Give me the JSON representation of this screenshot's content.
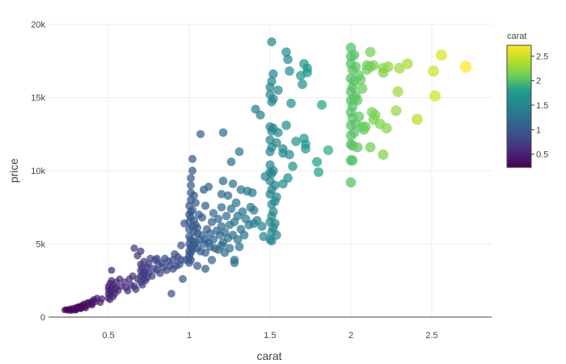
{
  "chart_data": {
    "type": "scatter",
    "title": "",
    "xlabel": "carat",
    "ylabel": "price",
    "xlim": [
      0.13,
      2.87
    ],
    "ylim": [
      0,
      20000
    ],
    "x_ticks": [
      0.5,
      1,
      1.5,
      2,
      2.5
    ],
    "x_tick_labels": [
      "0.5",
      "1",
      "1.5",
      "2",
      "2.5"
    ],
    "y_ticks": [
      0,
      5000,
      10000,
      15000,
      20000
    ],
    "y_tick_labels": [
      "0",
      "5k",
      "10k",
      "15k",
      "20k"
    ],
    "grid": true,
    "colorscale": "viridis",
    "color_variable": "carat",
    "colorbar": {
      "title": "carat",
      "range": [
        0.23,
        2.72
      ],
      "ticks": [
        0.5,
        1,
        1.5,
        2,
        2.5
      ],
      "tick_labels": [
        "0.5",
        "1",
        "1.5",
        "2",
        "2.5"
      ],
      "placement": "right"
    },
    "marker_size_by": "carat",
    "points": [
      [
        0.23,
        480
      ],
      [
        0.24,
        520
      ],
      [
        0.25,
        450
      ],
      [
        0.26,
        560
      ],
      [
        0.27,
        500
      ],
      [
        0.28,
        610
      ],
      [
        0.29,
        470
      ],
      [
        0.3,
        650
      ],
      [
        0.3,
        520
      ],
      [
        0.31,
        700
      ],
      [
        0.31,
        580
      ],
      [
        0.32,
        720
      ],
      [
        0.32,
        640
      ],
      [
        0.33,
        760
      ],
      [
        0.33,
        600
      ],
      [
        0.34,
        820
      ],
      [
        0.35,
        700
      ],
      [
        0.35,
        900
      ],
      [
        0.36,
        760
      ],
      [
        0.37,
        980
      ],
      [
        0.38,
        850
      ],
      [
        0.38,
        1000
      ],
      [
        0.39,
        900
      ],
      [
        0.4,
        1100
      ],
      [
        0.4,
        950
      ],
      [
        0.41,
        1200
      ],
      [
        0.42,
        1050
      ],
      [
        0.43,
        1300
      ],
      [
        0.45,
        1000
      ],
      [
        0.46,
        1250
      ],
      [
        0.3,
        480
      ],
      [
        0.33,
        560
      ],
      [
        0.36,
        620
      ],
      [
        0.4,
        820
      ],
      [
        0.27,
        440
      ],
      [
        0.5,
        1300
      ],
      [
        0.5,
        1600
      ],
      [
        0.5,
        1900
      ],
      [
        0.5,
        2100
      ],
      [
        0.51,
        1500
      ],
      [
        0.51,
        1800
      ],
      [
        0.51,
        2300
      ],
      [
        0.51,
        1200
      ],
      [
        0.52,
        2000
      ],
      [
        0.52,
        1700
      ],
      [
        0.52,
        2500
      ],
      [
        0.53,
        1400
      ],
      [
        0.53,
        2200
      ],
      [
        0.54,
        1900
      ],
      [
        0.54,
        1600
      ],
      [
        0.55,
        2400
      ],
      [
        0.55,
        2000
      ],
      [
        0.56,
        1800
      ],
      [
        0.57,
        2600
      ],
      [
        0.58,
        2100
      ],
      [
        0.6,
        2400
      ],
      [
        0.61,
        2000
      ],
      [
        0.62,
        1800
      ],
      [
        0.63,
        2600
      ],
      [
        0.64,
        2200
      ],
      [
        0.65,
        2800
      ],
      [
        0.66,
        2100
      ],
      [
        0.67,
        1900
      ],
      [
        0.68,
        2600
      ],
      [
        0.52,
        3200
      ],
      [
        0.7,
        2400
      ],
      [
        0.7,
        2800
      ],
      [
        0.7,
        3200
      ],
      [
        0.7,
        3600
      ],
      [
        0.71,
        2200
      ],
      [
        0.71,
        3000
      ],
      [
        0.71,
        3400
      ],
      [
        0.72,
        2600
      ],
      [
        0.72,
        3800
      ],
      [
        0.72,
        2900
      ],
      [
        0.73,
        3100
      ],
      [
        0.73,
        2500
      ],
      [
        0.74,
        3400
      ],
      [
        0.74,
        2700
      ],
      [
        0.75,
        3000
      ],
      [
        0.75,
        3600
      ],
      [
        0.76,
        4000
      ],
      [
        0.77,
        2800
      ],
      [
        0.78,
        3300
      ],
      [
        0.79,
        3900
      ],
      [
        0.8,
        3200
      ],
      [
        0.8,
        4000
      ],
      [
        0.81,
        3600
      ],
      [
        0.82,
        3000
      ],
      [
        0.83,
        3700
      ],
      [
        0.84,
        3400
      ],
      [
        0.85,
        4000
      ],
      [
        0.86,
        3200
      ],
      [
        0.87,
        3800
      ],
      [
        0.88,
        3500
      ],
      [
        0.66,
        4700
      ],
      [
        0.7,
        4500
      ],
      [
        0.68,
        4200
      ],
      [
        0.9,
        3300
      ],
      [
        0.9,
        3900
      ],
      [
        0.91,
        4300
      ],
      [
        0.92,
        3500
      ],
      [
        0.93,
        4100
      ],
      [
        0.94,
        3600
      ],
      [
        0.95,
        3900
      ],
      [
        0.96,
        2600
      ],
      [
        0.98,
        3900
      ],
      [
        0.89,
        1600
      ],
      [
        1.0,
        4000
      ],
      [
        1.0,
        4500
      ],
      [
        1.0,
        5000
      ],
      [
        1.0,
        5500
      ],
      [
        1.0,
        6000
      ],
      [
        1.0,
        6500
      ],
      [
        1.0,
        7000
      ],
      [
        1.0,
        7600
      ],
      [
        1.0,
        4200
      ],
      [
        1.0,
        3700
      ],
      [
        1.01,
        4800
      ],
      [
        1.01,
        5300
      ],
      [
        1.01,
        6800
      ],
      [
        1.01,
        7200
      ],
      [
        1.01,
        8000
      ],
      [
        1.01,
        8500
      ],
      [
        1.01,
        9000
      ],
      [
        1.01,
        9500
      ],
      [
        1.01,
        4400
      ],
      [
        1.01,
        3900
      ],
      [
        1.02,
        5200
      ],
      [
        1.02,
        6200
      ],
      [
        1.02,
        7300
      ],
      [
        1.02,
        10000
      ],
      [
        1.02,
        10800
      ],
      [
        1.02,
        4600
      ],
      [
        1.03,
        5800
      ],
      [
        1.03,
        6600
      ],
      [
        1.03,
        8300
      ],
      [
        1.03,
        4900
      ],
      [
        1.04,
        5100
      ],
      [
        1.04,
        6300
      ],
      [
        1.04,
        7800
      ],
      [
        1.05,
        4700
      ],
      [
        1.05,
        5700
      ],
      [
        1.05,
        6100
      ],
      [
        1.06,
        5300
      ],
      [
        1.06,
        7000
      ],
      [
        1.07,
        12500
      ],
      [
        1.07,
        4500
      ],
      [
        1.08,
        5600
      ],
      [
        1.08,
        6800
      ],
      [
        1.09,
        5000
      ],
      [
        1.09,
        8700
      ],
      [
        1.1,
        5300
      ],
      [
        1.1,
        7600
      ],
      [
        1.1,
        4400
      ],
      [
        1.11,
        6000
      ],
      [
        1.12,
        5100
      ],
      [
        1.12,
        8900
      ],
      [
        1.13,
        5700
      ],
      [
        1.13,
        4800
      ],
      [
        1.14,
        6500
      ],
      [
        1.15,
        5300
      ],
      [
        1.15,
        7100
      ],
      [
        1.16,
        4700
      ],
      [
        1.17,
        5900
      ],
      [
        1.18,
        6700
      ],
      [
        1.18,
        4600
      ],
      [
        1.19,
        5600
      ],
      [
        1.2,
        4900
      ],
      [
        1.2,
        6200
      ],
      [
        1.2,
        7500
      ],
      [
        1.2,
        8400
      ],
      [
        1.21,
        5100
      ],
      [
        1.21,
        9300
      ],
      [
        1.21,
        12600
      ],
      [
        1.22,
        5800
      ],
      [
        1.22,
        4400
      ],
      [
        1.23,
        6900
      ],
      [
        1.24,
        5400
      ],
      [
        1.24,
        8300
      ],
      [
        1.25,
        6300
      ],
      [
        1.25,
        4700
      ],
      [
        1.26,
        7400
      ],
      [
        1.26,
        10600
      ],
      [
        1.27,
        5600
      ],
      [
        1.27,
        9100
      ],
      [
        1.28,
        6500
      ],
      [
        1.28,
        3700
      ],
      [
        1.29,
        7800
      ],
      [
        1.3,
        5300
      ],
      [
        1.3,
        6900
      ],
      [
        1.31,
        11300
      ],
      [
        1.31,
        4800
      ],
      [
        1.32,
        6000
      ],
      [
        1.32,
        8700
      ],
      [
        1.33,
        7200
      ],
      [
        1.34,
        5600
      ],
      [
        1.35,
        6700
      ],
      [
        1.36,
        8600
      ],
      [
        1.37,
        6300
      ],
      [
        1.38,
        7500
      ],
      [
        1.39,
        8500
      ],
      [
        1.4,
        6400
      ],
      [
        1.4,
        7300
      ],
      [
        1.41,
        14200
      ],
      [
        1.42,
        6600
      ],
      [
        1.44,
        13800
      ],
      [
        1.45,
        6200
      ],
      [
        1.46,
        5500
      ],
      [
        1.47,
        9600
      ],
      [
        0.97,
        6400
      ],
      [
        0.95,
        4900
      ],
      [
        1.05,
        3500
      ],
      [
        1.1,
        3300
      ],
      [
        1.14,
        3900
      ],
      [
        1.28,
        3900
      ],
      [
        1.5,
        5300
      ],
      [
        1.5,
        6500
      ],
      [
        1.5,
        8400
      ],
      [
        1.5,
        9300
      ],
      [
        1.5,
        10400
      ],
      [
        1.5,
        11300
      ],
      [
        1.5,
        12100
      ],
      [
        1.5,
        13000
      ],
      [
        1.5,
        15200
      ],
      [
        1.5,
        15700
      ],
      [
        1.51,
        5800
      ],
      [
        1.51,
        6900
      ],
      [
        1.51,
        7700
      ],
      [
        1.51,
        8700
      ],
      [
        1.51,
        9800
      ],
      [
        1.51,
        11600
      ],
      [
        1.51,
        12700
      ],
      [
        1.51,
        14700
      ],
      [
        1.51,
        16100
      ],
      [
        1.51,
        18800
      ],
      [
        1.52,
        6100
      ],
      [
        1.52,
        7200
      ],
      [
        1.52,
        10000
      ],
      [
        1.52,
        12900
      ],
      [
        1.52,
        16600
      ],
      [
        1.53,
        6400
      ],
      [
        1.53,
        7900
      ],
      [
        1.53,
        9000
      ],
      [
        1.54,
        5600
      ],
      [
        1.54,
        8200
      ],
      [
        1.54,
        11900
      ],
      [
        1.55,
        12600
      ],
      [
        1.55,
        15500
      ],
      [
        1.58,
        9100
      ],
      [
        1.58,
        11200
      ],
      [
        1.58,
        11500
      ],
      [
        1.6,
        13100
      ],
      [
        1.6,
        18100
      ],
      [
        1.61,
        17600
      ],
      [
        1.61,
        9500
      ],
      [
        1.62,
        11100
      ],
      [
        1.62,
        16800
      ],
      [
        1.63,
        14600
      ],
      [
        1.64,
        10300
      ],
      [
        1.66,
        12000
      ],
      [
        1.69,
        16500
      ],
      [
        1.7,
        15900
      ],
      [
        1.71,
        17300
      ],
      [
        1.71,
        12200
      ],
      [
        1.72,
        11800
      ],
      [
        1.72,
        11500
      ],
      [
        1.73,
        16700
      ],
      [
        1.73,
        17000
      ],
      [
        1.79,
        10600
      ],
      [
        1.8,
        9900
      ],
      [
        1.82,
        14500
      ],
      [
        1.86,
        11400
      ],
      [
        1.5,
        9900
      ],
      [
        1.51,
        5200
      ],
      [
        1.52,
        14900
      ],
      [
        2.0,
        9200
      ],
      [
        2.0,
        10700
      ],
      [
        2.0,
        11800
      ],
      [
        2.0,
        12400
      ],
      [
        2.0,
        13100
      ],
      [
        2.0,
        14000
      ],
      [
        2.0,
        14800
      ],
      [
        2.0,
        15400
      ],
      [
        2.0,
        16300
      ],
      [
        2.0,
        17300
      ],
      [
        2.0,
        17800
      ],
      [
        2.0,
        18400
      ],
      [
        2.01,
        10700
      ],
      [
        2.01,
        11700
      ],
      [
        2.01,
        13600
      ],
      [
        2.01,
        14400
      ],
      [
        2.01,
        15700
      ],
      [
        2.01,
        16900
      ],
      [
        2.02,
        12600
      ],
      [
        2.02,
        14900
      ],
      [
        2.02,
        16100
      ],
      [
        2.02,
        17900
      ],
      [
        2.03,
        13200
      ],
      [
        2.03,
        15100
      ],
      [
        2.03,
        17100
      ],
      [
        2.04,
        11600
      ],
      [
        2.04,
        14800
      ],
      [
        2.05,
        13700
      ],
      [
        2.05,
        16500
      ],
      [
        2.06,
        16200
      ],
      [
        2.07,
        13000
      ],
      [
        2.07,
        15600
      ],
      [
        2.08,
        12800
      ],
      [
        2.09,
        13000
      ],
      [
        2.1,
        16900
      ],
      [
        2.1,
        17200
      ],
      [
        2.12,
        11600
      ],
      [
        2.12,
        18100
      ],
      [
        2.12,
        17100
      ],
      [
        2.13,
        14000
      ],
      [
        2.14,
        13500
      ],
      [
        2.14,
        17200
      ],
      [
        2.15,
        13800
      ],
      [
        2.18,
        13200
      ],
      [
        2.2,
        11100
      ],
      [
        2.2,
        17000
      ],
      [
        2.2,
        16700
      ],
      [
        2.22,
        12900
      ],
      [
        2.23,
        17100
      ],
      [
        2.28,
        14100
      ],
      [
        2.29,
        15400
      ],
      [
        2.3,
        17000
      ],
      [
        2.35,
        17300
      ],
      [
        2.41,
        13500
      ],
      [
        2.51,
        16800
      ],
      [
        2.52,
        15100
      ],
      [
        2.56,
        17900
      ],
      [
        2.71,
        17100
      ]
    ]
  }
}
